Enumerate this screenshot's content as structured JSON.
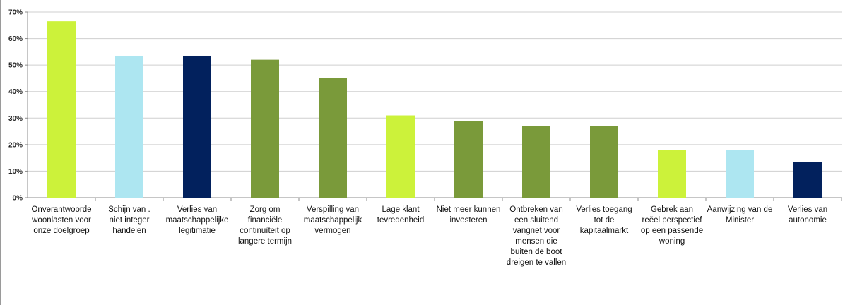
{
  "chart_data": {
    "type": "bar",
    "title": "",
    "xlabel": "",
    "ylabel": "",
    "ylim": [
      0,
      70
    ],
    "yticks": [
      "0%",
      "10%",
      "20%",
      "30%",
      "40%",
      "50%",
      "60%",
      "70%"
    ],
    "grid": true,
    "legend": "none",
    "categories": [
      [
        "Onverantwoorde",
        "woonlasten voor",
        "onze doelgroep"
      ],
      [
        "Schijn van     .",
        "niet integer",
        "handelen"
      ],
      [
        "Verlies van",
        "maatschappelijke",
        "legitimatie"
      ],
      [
        "Zorg om",
        "financiële",
        "continuïteit op",
        "langere termijn"
      ],
      [
        "Verspilling van",
        "maatschappelijk",
        "vermogen"
      ],
      [
        "Lage klant",
        "tevredenheid"
      ],
      [
        "Niet meer kunnen",
        "investeren"
      ],
      [
        "Ontbreken van",
        "een sluitend",
        "vangnet voor",
        "mensen die",
        "buiten de boot",
        "dreigen te vallen"
      ],
      [
        "Verlies toegang",
        "tot de",
        "kapitaalmarkt"
      ],
      [
        "Gebrek aan",
        "reëel perspectief",
        "op een passende",
        "woning"
      ],
      [
        "Aanwijzing van de",
        "Minister"
      ],
      [
        "Verlies van",
        "autonomie"
      ]
    ],
    "values": [
      66.5,
      53.5,
      53.5,
      52,
      45,
      31,
      29,
      27,
      27,
      18,
      18,
      13.5
    ],
    "colors": [
      "#ccf23a",
      "#ade6f1",
      "#02215d",
      "#7a9a3a",
      "#7a9a3a",
      "#ccf23a",
      "#7a9a3a",
      "#7a9a3a",
      "#7a9a3a",
      "#ccf23a",
      "#ade6f1",
      "#02215d"
    ]
  }
}
